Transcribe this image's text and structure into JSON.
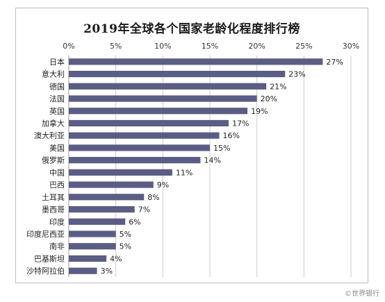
{
  "chart_data": {
    "type": "bar",
    "orientation": "horizontal",
    "title": "2019年全球各个国家老龄化程度排行榜",
    "categories": [
      "日本",
      "意大利",
      "德国",
      "法国",
      "英国",
      "加拿大",
      "澳大利亚",
      "美国",
      "俄罗斯",
      "中国",
      "巴西",
      "土耳其",
      "墨西哥",
      "印度",
      "印度尼西亚",
      "南非",
      "巴基斯坦",
      "沙特阿拉伯"
    ],
    "values": [
      27,
      23,
      21,
      20,
      19,
      17,
      16,
      15,
      14,
      11,
      9,
      8,
      7,
      6,
      5,
      5,
      4,
      3
    ],
    "data_labels": [
      "27%",
      "23%",
      "21%",
      "20%",
      "19%",
      "17%",
      "16%",
      "15%",
      "14%",
      "11%",
      "9%",
      "8%",
      "7%",
      "6%",
      "5%",
      "5%",
      "4%",
      "3%"
    ],
    "xlim": [
      0,
      30
    ],
    "x_ticks": [
      "0%",
      "5%",
      "10%",
      "15%",
      "20%",
      "25%",
      "30%"
    ],
    "x_tick_values": [
      0,
      5,
      10,
      15,
      20,
      25,
      30
    ],
    "x_axis_position": "top",
    "grid": "vertical",
    "bar_color": "#5b5d84",
    "grid_color": "#cccccc"
  },
  "watermark": "©世界银行"
}
